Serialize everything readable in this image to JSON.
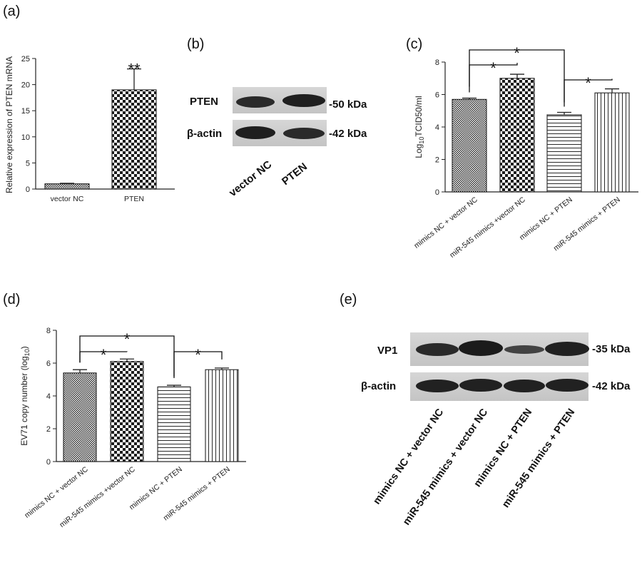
{
  "panels": {
    "a": {
      "letter": "(a)",
      "ylabel": "Relative expression of PTEN mRNA",
      "significance": "**"
    },
    "b": {
      "letter": "(b)",
      "rows": [
        {
          "label": "PTEN",
          "kda": "-50 kDa"
        },
        {
          "label": "β-actin",
          "kda": "-42 kDa"
        }
      ],
      "lanes": [
        "vector NC",
        "PTEN"
      ]
    },
    "c": {
      "letter": "(c)",
      "ylabel_parts": {
        "pre": "Log",
        "sub": "10",
        "post": "TCID50/ml"
      },
      "stars": [
        "*",
        "*",
        "*"
      ]
    },
    "d": {
      "letter": "(d)",
      "ylabel_parts": {
        "pre": "EV71 copy number (log",
        "sub": "10",
        "post": ")"
      },
      "stars": [
        "*",
        "*",
        "*"
      ]
    },
    "e": {
      "letter": "(e)",
      "rows": [
        {
          "label": "VP1",
          "kda": "-35 kDa"
        },
        {
          "label": "β-actin",
          "kda": "-42 kDa"
        }
      ],
      "lanes": [
        "mimics NC + vector NC",
        "miR-545 mimics + vector NC",
        "mimics NC + PTEN",
        "miR-545 mimics + PTEN"
      ]
    }
  },
  "colors": {
    "ink": "#111111",
    "bar_fill_light": "#ffffff",
    "pattern_dark": "#222222",
    "blot_bg": "#cfcfcf",
    "band": "#1c1c1c"
  },
  "chart_data": [
    {
      "id": "a",
      "type": "bar",
      "categories": [
        "vector NC",
        "PTEN"
      ],
      "values": [
        1.0,
        19.0
      ],
      "errors": [
        0.1,
        4.0
      ],
      "patterns": [
        "dense",
        "checker"
      ],
      "ylabel": "Relative expression of PTEN mRNA",
      "ylim": [
        0,
        25
      ],
      "yticks": [
        0,
        5,
        10,
        15,
        20,
        25
      ],
      "significance": [
        {
          "bar": 1,
          "label": "**"
        }
      ],
      "grid": false
    },
    {
      "id": "c",
      "type": "bar",
      "categories": [
        "mimics NC + vector NC",
        "miR-545 mimics +vector NC",
        "mimics NC + PTEN",
        "miR-545 mimics + PTEN"
      ],
      "values": [
        5.7,
        7.0,
        4.75,
        6.1
      ],
      "errors": [
        0.08,
        0.25,
        0.15,
        0.25
      ],
      "patterns": [
        "dense",
        "checker",
        "hlines",
        "vlines"
      ],
      "ylabel": "Log10TCID50/ml",
      "ylim": [
        0,
        8
      ],
      "yticks": [
        0,
        2,
        4,
        6,
        8
      ],
      "brackets": [
        [
          0,
          1,
          "*"
        ],
        [
          0,
          2,
          "*"
        ],
        [
          2,
          3,
          "*"
        ]
      ],
      "grid": false
    },
    {
      "id": "d",
      "type": "bar",
      "categories": [
        "mimics NC + vector NC",
        "miR-545 mimics +vector NC",
        "mimics NC + PTEN",
        "miR-545 mimics + PTEN"
      ],
      "values": [
        5.4,
        6.1,
        4.55,
        5.6
      ],
      "errors": [
        0.2,
        0.15,
        0.1,
        0.1
      ],
      "patterns": [
        "dense",
        "checker",
        "hlines",
        "vlines"
      ],
      "ylabel": "EV71 copy number (log10)",
      "ylim": [
        0,
        8
      ],
      "yticks": [
        0,
        2,
        4,
        6,
        8
      ],
      "brackets": [
        [
          0,
          1,
          "*"
        ],
        [
          0,
          2,
          "*"
        ],
        [
          2,
          3,
          "*"
        ]
      ],
      "grid": false
    }
  ]
}
